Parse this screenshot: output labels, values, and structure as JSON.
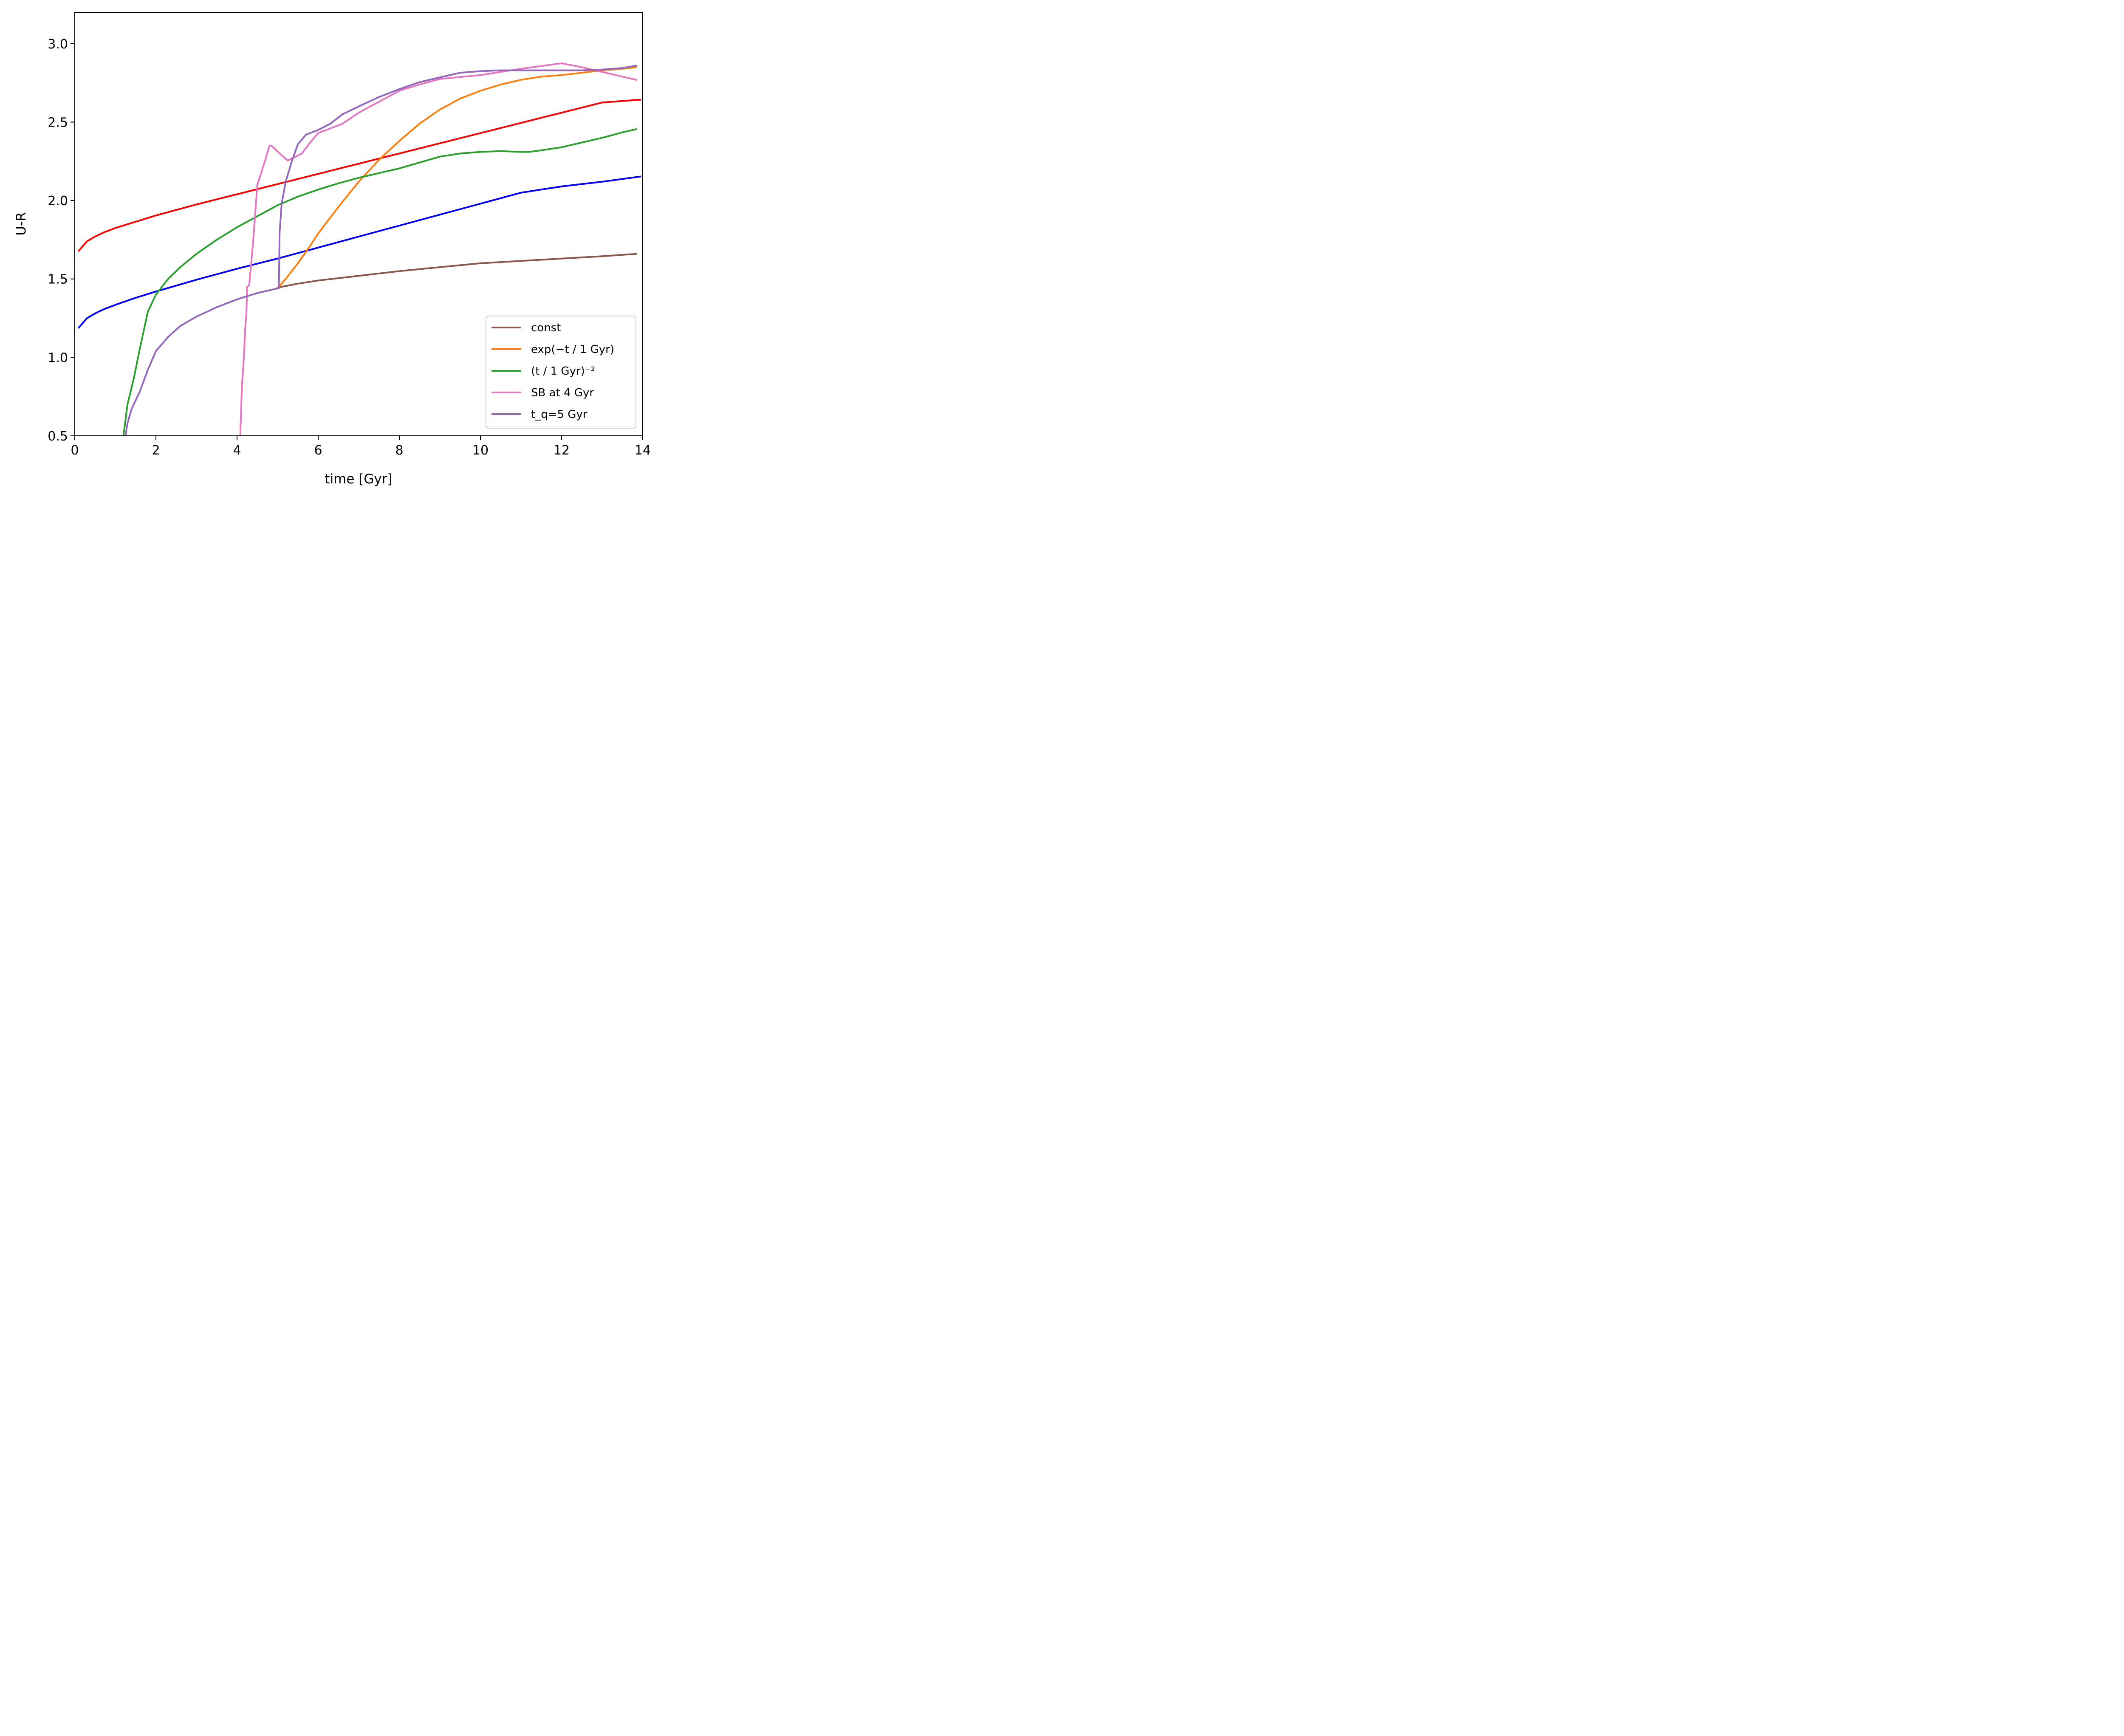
{
  "chart_data": {
    "type": "line",
    "xlabel": "time [Gyr]",
    "ylabel": "U-R",
    "xlim": [
      0,
      14
    ],
    "ylim": [
      0.5,
      3.2
    ],
    "xticks": [
      0,
      2,
      4,
      6,
      8,
      10,
      12,
      14
    ],
    "xtick_labels": [
      "0",
      "2",
      "4",
      "6",
      "8",
      "10",
      "12",
      "14"
    ],
    "yticks": [
      0.5,
      1.0,
      1.5,
      2.0,
      2.5,
      3.0
    ],
    "ytick_labels": [
      "0.5",
      "1.0",
      "1.5",
      "2.0",
      "2.5",
      "3.0"
    ],
    "grid": false,
    "legend_position": "bottom-right",
    "series": [
      {
        "color": "#ff0000",
        "points": [
          [
            0.1,
            1.68
          ],
          [
            0.3,
            1.74
          ],
          [
            0.5,
            1.77
          ],
          [
            0.7,
            1.795
          ],
          [
            1,
            1.825
          ],
          [
            1.5,
            1.865
          ],
          [
            2,
            1.905
          ],
          [
            3,
            1.975
          ],
          [
            4,
            2.04
          ],
          [
            5,
            2.105
          ],
          [
            6,
            2.17
          ],
          [
            7,
            2.235
          ],
          [
            8,
            2.3
          ],
          [
            9,
            2.365
          ],
          [
            10,
            2.43
          ],
          [
            11,
            2.495
          ],
          [
            12,
            2.56
          ],
          [
            13,
            2.625
          ],
          [
            13.94,
            2.643
          ]
        ]
      },
      {
        "color": "#0000ff",
        "points": [
          [
            0.1,
            1.19
          ],
          [
            0.3,
            1.25
          ],
          [
            0.5,
            1.28
          ],
          [
            0.7,
            1.305
          ],
          [
            1,
            1.335
          ],
          [
            1.5,
            1.38
          ],
          [
            2,
            1.42
          ],
          [
            3,
            1.495
          ],
          [
            4,
            1.565
          ],
          [
            5,
            1.63
          ],
          [
            6,
            1.7
          ],
          [
            7,
            1.77
          ],
          [
            8,
            1.84
          ],
          [
            9,
            1.91
          ],
          [
            10,
            1.98
          ],
          [
            11,
            2.05
          ],
          [
            12,
            2.09
          ],
          [
            13,
            2.12
          ],
          [
            13.94,
            2.153
          ]
        ]
      },
      {
        "name": "const",
        "color": "#8c564b",
        "points": [
          [
            5,
            1.445
          ],
          [
            5.5,
            1.47
          ],
          [
            6,
            1.49
          ],
          [
            7,
            1.52
          ],
          [
            8,
            1.55
          ],
          [
            9,
            1.575
          ],
          [
            10,
            1.6
          ],
          [
            11,
            1.615
          ],
          [
            12,
            1.63
          ],
          [
            13,
            1.645
          ],
          [
            13.84,
            1.66
          ]
        ]
      },
      {
        "name": "exp(−t / 1 Gyr)",
        "color": "#ff7f0e",
        "points": [
          [
            5.02,
            1.445
          ],
          [
            5.2,
            1.5
          ],
          [
            5.5,
            1.6
          ],
          [
            5.8,
            1.71
          ],
          [
            6,
            1.79
          ],
          [
            6.5,
            1.96
          ],
          [
            7,
            2.12
          ],
          [
            7.5,
            2.26
          ],
          [
            8,
            2.38
          ],
          [
            8.5,
            2.49
          ],
          [
            9,
            2.58
          ],
          [
            9.5,
            2.65
          ],
          [
            10,
            2.7
          ],
          [
            10.5,
            2.74
          ],
          [
            11,
            2.77
          ],
          [
            11.5,
            2.79
          ],
          [
            12,
            2.8
          ],
          [
            12.5,
            2.815
          ],
          [
            13,
            2.83
          ],
          [
            13.5,
            2.84
          ],
          [
            13.84,
            2.85
          ]
        ]
      },
      {
        "name": "(t / 1 Gyr)⁻²",
        "color": "#2ca02c",
        "points": [
          [
            1.2,
            0.5
          ],
          [
            1.25,
            0.6
          ],
          [
            1.3,
            0.7
          ],
          [
            1.45,
            0.86
          ],
          [
            1.6,
            1.05
          ],
          [
            1.8,
            1.29
          ],
          [
            2,
            1.4
          ],
          [
            2.3,
            1.5
          ],
          [
            2.6,
            1.575
          ],
          [
            3,
            1.66
          ],
          [
            3.5,
            1.75
          ],
          [
            4,
            1.83
          ],
          [
            4.5,
            1.9
          ],
          [
            5,
            1.97
          ],
          [
            5.5,
            2.025
          ],
          [
            6,
            2.07
          ],
          [
            6.5,
            2.11
          ],
          [
            7,
            2.145
          ],
          [
            8,
            2.205
          ],
          [
            9,
            2.28
          ],
          [
            9.5,
            2.3
          ],
          [
            10,
            2.31
          ],
          [
            10.5,
            2.315
          ],
          [
            11,
            2.31
          ],
          [
            11.2,
            2.31
          ],
          [
            11.5,
            2.32
          ],
          [
            12,
            2.34
          ],
          [
            12.5,
            2.37
          ],
          [
            13,
            2.4
          ],
          [
            13.5,
            2.435
          ],
          [
            13.84,
            2.455
          ]
        ]
      },
      {
        "name": "SB at 4 Gyr",
        "color": "#e377c2",
        "points": [
          [
            4.08,
            0.5
          ],
          [
            4.12,
            0.82
          ],
          [
            4.17,
            1.0
          ],
          [
            4.2,
            1.18
          ],
          [
            4.23,
            1.28
          ],
          [
            4.25,
            1.45
          ],
          [
            4.3,
            1.46
          ],
          [
            4.35,
            1.6
          ],
          [
            4.4,
            1.75
          ],
          [
            4.5,
            2.1
          ],
          [
            4.65,
            2.22
          ],
          [
            4.8,
            2.35
          ],
          [
            4.85,
            2.35
          ],
          [
            5.05,
            2.3
          ],
          [
            5.25,
            2.255
          ],
          [
            5.6,
            2.3
          ],
          [
            5.8,
            2.37
          ],
          [
            6,
            2.43
          ],
          [
            6.3,
            2.46
          ],
          [
            6.6,
            2.49
          ],
          [
            7,
            2.56
          ],
          [
            7.5,
            2.63
          ],
          [
            8,
            2.7
          ],
          [
            8.5,
            2.74
          ],
          [
            9,
            2.775
          ],
          [
            10,
            2.8
          ],
          [
            11,
            2.84
          ],
          [
            12,
            2.875
          ],
          [
            12.5,
            2.85
          ],
          [
            13,
            2.82
          ],
          [
            13.5,
            2.79
          ],
          [
            13.84,
            2.77
          ]
        ]
      },
      {
        "name": "t_q=5 Gyr",
        "color": "#9467bd",
        "points": [
          [
            1.25,
            0.5
          ],
          [
            1.3,
            0.58
          ],
          [
            1.4,
            0.67
          ],
          [
            1.6,
            0.78
          ],
          [
            1.8,
            0.92
          ],
          [
            2,
            1.04
          ],
          [
            2.3,
            1.13
          ],
          [
            2.6,
            1.2
          ],
          [
            3,
            1.26
          ],
          [
            3.5,
            1.32
          ],
          [
            4,
            1.37
          ],
          [
            4.5,
            1.41
          ],
          [
            5,
            1.44
          ],
          [
            5.03,
            1.44
          ],
          [
            5.05,
            1.8
          ],
          [
            5.1,
            1.98
          ],
          [
            5.2,
            2.12
          ],
          [
            5.35,
            2.25
          ],
          [
            5.5,
            2.36
          ],
          [
            5.7,
            2.42
          ],
          [
            6,
            2.45
          ],
          [
            6.3,
            2.49
          ],
          [
            6.6,
            2.55
          ],
          [
            7,
            2.6
          ],
          [
            7.5,
            2.66
          ],
          [
            8,
            2.71
          ],
          [
            8.5,
            2.755
          ],
          [
            9,
            2.785
          ],
          [
            9.5,
            2.815
          ],
          [
            10,
            2.825
          ],
          [
            10.5,
            2.83
          ],
          [
            11,
            2.83
          ],
          [
            12,
            2.83
          ],
          [
            12.5,
            2.83
          ],
          [
            13,
            2.835
          ],
          [
            13.5,
            2.845
          ],
          [
            13.84,
            2.86
          ]
        ]
      }
    ]
  },
  "legend": {
    "items": [
      {
        "text": "const",
        "color": "#8c564b"
      },
      {
        "text": "exp(−t / 1 Gyr)",
        "color": "#ff7f0e"
      },
      {
        "text": "(t / 1 Gyr)⁻²",
        "color": "#2ca02c"
      },
      {
        "text": "SB at 4 Gyr",
        "color": "#e377c2"
      },
      {
        "text": "t_q=5 Gyr",
        "color": "#9467bd"
      }
    ]
  }
}
